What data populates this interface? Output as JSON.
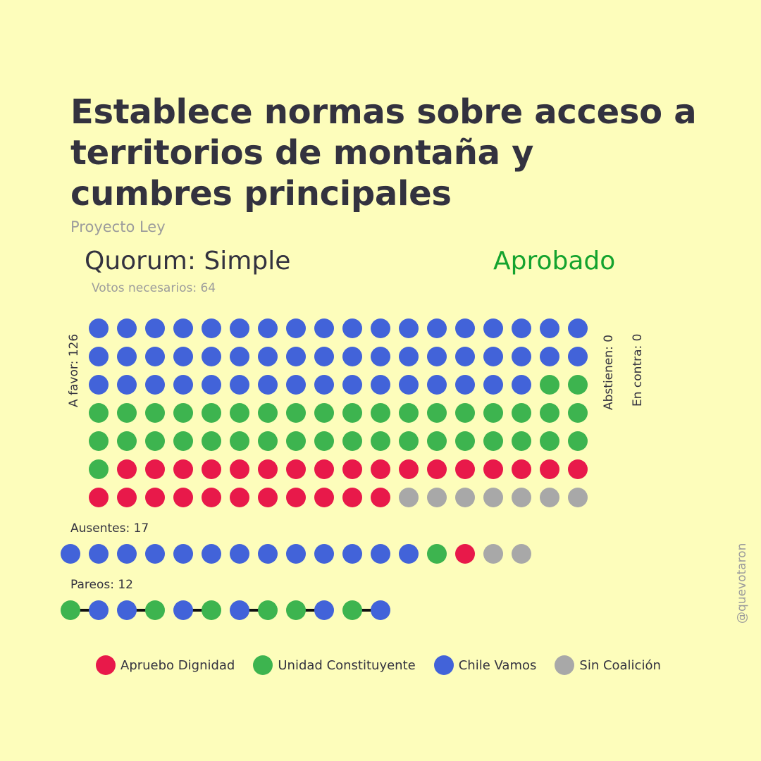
{
  "title": "Establece normas sobre acceso a territorios de montaña y cumbres principales",
  "subtitle": "Proyecto Ley",
  "quorum_label": "Quorum: Simple",
  "result_label": "Aprobado",
  "needed_label": "Votos necesarios: 64",
  "handle": "@quevotaron",
  "colors": {
    "background": "#fdfdbb",
    "Apruebo Dignidad": "#e8194a",
    "Unidad Constituyente": "#3db44f",
    "Chile Vamos": "#4263d9",
    "Sin Coalición": "#a8a8a8",
    "result": "#14a32e"
  },
  "legend": [
    {
      "name": "Apruebo Dignidad",
      "color": "#e8194a"
    },
    {
      "name": "Unidad Constituyente",
      "color": "#3db44f"
    },
    {
      "name": "Chile Vamos",
      "color": "#4263d9"
    },
    {
      "name": "Sin Coalición",
      "color": "#a8a8a8"
    }
  ],
  "chart_data": {
    "type": "waffle",
    "groups": [
      {
        "label": "A favor: 126",
        "total": 126,
        "counts": {
          "Chile Vamos": 52,
          "Unidad Constituyente": 39,
          "Apruebo Dignidad": 28,
          "Sin Coalición": 7
        }
      },
      {
        "label": "Abstienen: 0",
        "total": 0
      },
      {
        "label": "En contra: 0",
        "total": 0
      },
      {
        "label": "Ausentes: 17",
        "total": 17,
        "counts": {
          "Chile Vamos": 13,
          "Apruebo Dignidad": 1,
          "Unidad Constituyente": 1,
          "Sin Coalición": 2
        }
      },
      {
        "label": "Pareos: 12",
        "total": 12,
        "pairs": [
          [
            "Unidad Constituyente",
            "Chile Vamos"
          ],
          [
            "Chile Vamos",
            "Unidad Constituyente"
          ],
          [
            "Chile Vamos",
            "Unidad Constituyente"
          ],
          [
            "Chile Vamos",
            "Unidad Constituyente"
          ],
          [
            "Unidad Constituyente",
            "Chile Vamos"
          ],
          [
            "Unidad Constituyente",
            "Chile Vamos"
          ]
        ]
      }
    ]
  }
}
